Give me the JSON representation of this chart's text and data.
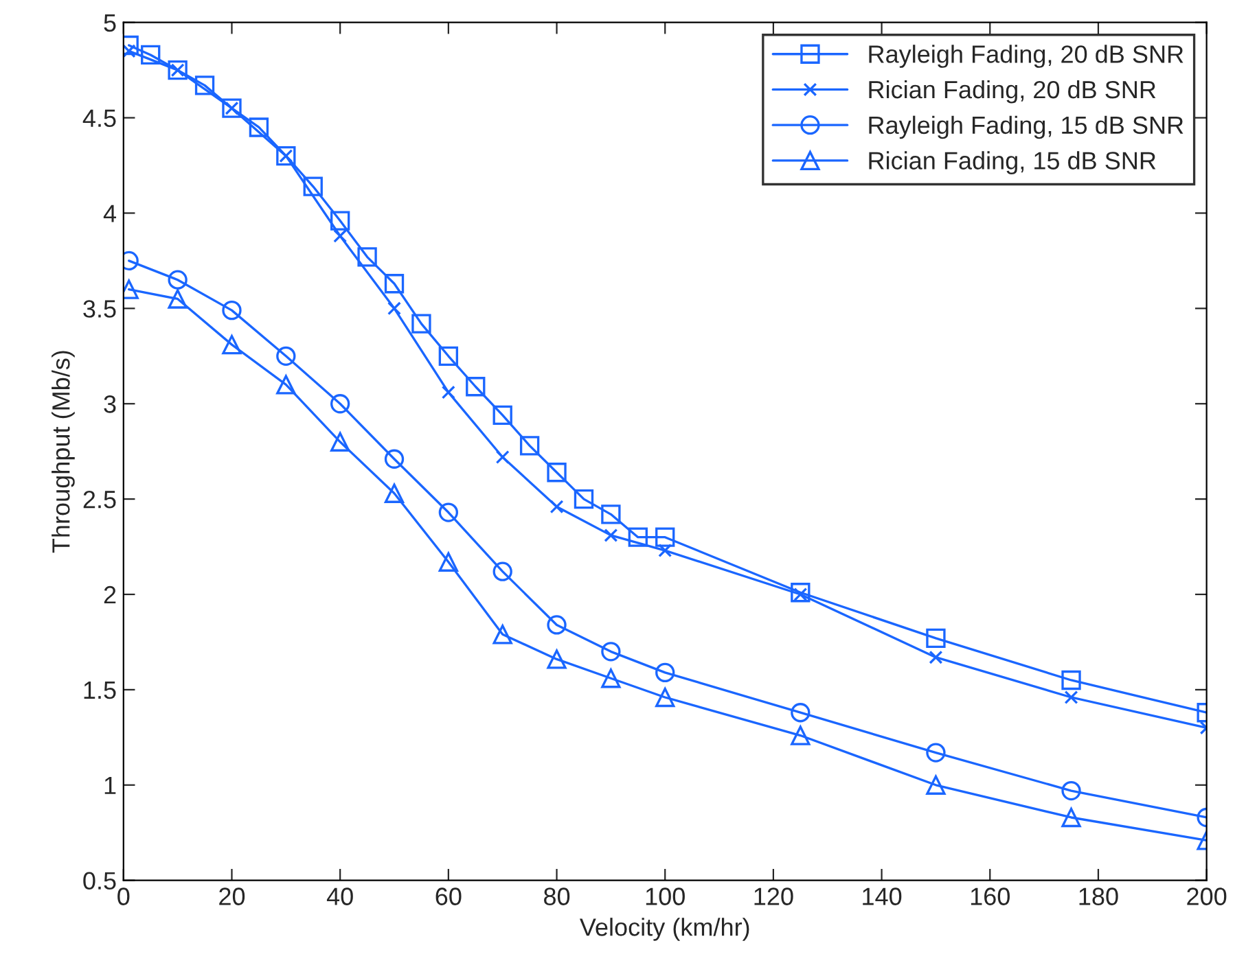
{
  "chart_data": {
    "type": "line",
    "xlabel": "Velocity (km/hr)",
    "ylabel": "Throughput (Mb/s)",
    "xlim": [
      0,
      200
    ],
    "xticks": [
      0,
      20,
      40,
      60,
      80,
      100,
      120,
      140,
      160,
      180,
      200
    ],
    "ylim": [
      0.5,
      5
    ],
    "yticks": [
      0.5,
      1,
      1.5,
      2,
      2.5,
      3,
      3.5,
      4,
      4.5,
      5
    ],
    "grid": false,
    "legend": "top right",
    "line_style": "solid",
    "series": [
      {
        "name": "Rayleigh Fading, 20 dB SNR",
        "color": "#1a66ff",
        "marker": "square",
        "x": [
          1,
          5,
          10,
          15,
          20,
          25,
          30,
          35,
          40,
          45,
          50,
          55,
          60,
          65,
          70,
          75,
          80,
          85,
          90,
          95,
          100,
          125,
          150,
          175,
          200
        ],
        "values": [
          4.88,
          4.83,
          4.75,
          4.67,
          4.55,
          4.45,
          4.3,
          4.14,
          3.96,
          3.77,
          3.63,
          3.42,
          3.25,
          3.09,
          2.94,
          2.78,
          2.64,
          2.5,
          2.42,
          2.3,
          2.3,
          2.01,
          1.77,
          1.55,
          1.38
        ]
      },
      {
        "name": "Rician Fading, 20 dB SNR",
        "color": "#1a66ff",
        "marker": "cross",
        "x": [
          1,
          10,
          20,
          30,
          40,
          50,
          60,
          70,
          80,
          90,
          100,
          125,
          150,
          175,
          200
        ],
        "values": [
          4.85,
          4.75,
          4.55,
          4.3,
          3.88,
          3.5,
          3.06,
          2.72,
          2.46,
          2.31,
          2.23,
          2.0,
          1.67,
          1.46,
          1.3
        ]
      },
      {
        "name": "Rayleigh Fading, 15 dB SNR",
        "color": "#1a66ff",
        "marker": "circle",
        "x": [
          1,
          10,
          20,
          30,
          40,
          50,
          60,
          70,
          80,
          90,
          100,
          125,
          150,
          175,
          200
        ],
        "values": [
          3.75,
          3.65,
          3.49,
          3.25,
          3.0,
          2.71,
          2.43,
          2.12,
          1.84,
          1.7,
          1.59,
          1.38,
          1.17,
          0.97,
          0.83
        ]
      },
      {
        "name": "Rician Fading, 15 dB SNR",
        "color": "#1a66ff",
        "marker": "triangle",
        "x": [
          1,
          10,
          20,
          30,
          40,
          50,
          60,
          70,
          80,
          90,
          100,
          125,
          150,
          175,
          200
        ],
        "values": [
          3.6,
          3.55,
          3.31,
          3.1,
          2.8,
          2.53,
          2.17,
          1.79,
          1.66,
          1.56,
          1.46,
          1.26,
          1.0,
          0.83,
          0.71
        ]
      }
    ]
  }
}
